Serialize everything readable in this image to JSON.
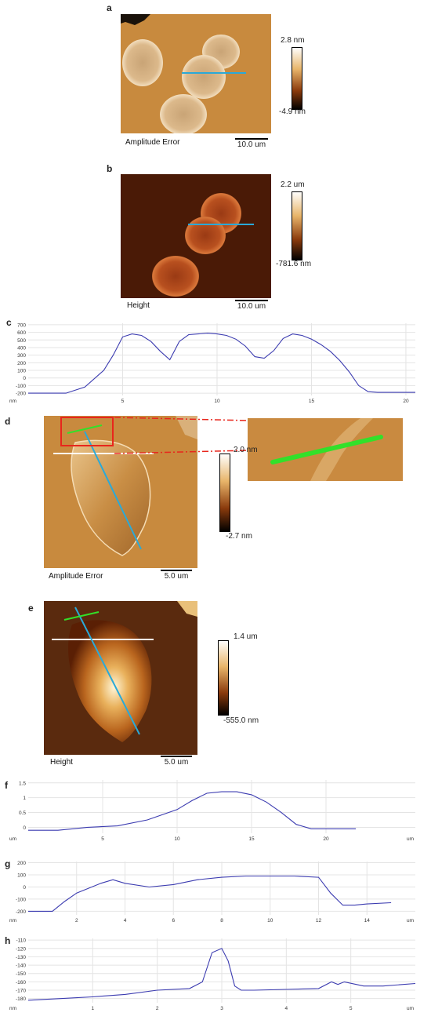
{
  "panels": {
    "a": {
      "letter": "a",
      "caption": "Amplitude Error",
      "scale": "10.0 um",
      "cmax": "2.8 nm",
      "cmin": "-4.9 nm"
    },
    "b": {
      "letter": "b",
      "caption": "Height",
      "scale": "10.0 um",
      "cmax": "2.2 um",
      "cmin": "-781.6 nm"
    },
    "d": {
      "letter": "d",
      "caption": "Amplitude Error",
      "scale": "5.0 um",
      "cmax": "2.0 nm",
      "cmin": "-2.7 nm"
    },
    "e": {
      "letter": "e",
      "caption": "Height",
      "scale": "5.0 um",
      "cmax": "1.4 um",
      "cmin": "-555.0 nm"
    }
  },
  "colors": {
    "blue_line": "#2aa9d8",
    "green_line": "#33e02a",
    "white_line": "#ffffff",
    "inset_box": "#e8261c",
    "profile": "#3b3bb0"
  },
  "chart_data": [
    {
      "type": "line",
      "panel": "c",
      "ylabel": "nm",
      "xlabel": "",
      "xticks": [
        5,
        10,
        15,
        20
      ],
      "yticks": [
        700,
        600,
        500,
        400,
        300,
        200,
        100,
        0,
        -100,
        -200
      ],
      "xlim": [
        0,
        20.5
      ],
      "ylim": [
        -230,
        720
      ],
      "x": [
        0,
        2,
        3,
        4,
        4.5,
        5,
        5.5,
        6,
        6.5,
        7,
        7.5,
        8,
        8.5,
        9,
        9.5,
        10,
        10.5,
        11,
        11.5,
        12,
        12.5,
        13,
        13.5,
        14,
        14.5,
        15,
        15.5,
        16,
        16.5,
        17,
        17.5,
        18,
        18.5,
        19,
        19.5,
        20,
        20.5
      ],
      "y": [
        -200,
        -200,
        -120,
        100,
        300,
        540,
        580,
        560,
        480,
        350,
        240,
        480,
        570,
        580,
        590,
        580,
        560,
        510,
        420,
        280,
        260,
        360,
        520,
        580,
        560,
        510,
        440,
        350,
        230,
        80,
        -100,
        -180,
        -190,
        -190,
        -190,
        -190,
        -190
      ]
    },
    {
      "type": "line",
      "panel": "f",
      "ylabel": "um",
      "xlabel": "um",
      "xticks": [
        5,
        10,
        15,
        20
      ],
      "yticks": [
        1.5,
        1,
        0.5,
        0
      ],
      "xlim": [
        0,
        26
      ],
      "ylim": [
        -0.2,
        1.6
      ],
      "x": [
        0,
        2,
        4,
        6,
        8,
        10,
        11,
        12,
        13,
        14,
        15,
        16,
        17,
        18,
        19,
        20,
        22
      ],
      "y": [
        -0.1,
        -0.1,
        0,
        0.05,
        0.25,
        0.6,
        0.9,
        1.15,
        1.2,
        1.2,
        1.1,
        0.85,
        0.5,
        0.1,
        -0.05,
        -0.05,
        -0.05
      ]
    },
    {
      "type": "line",
      "panel": "g",
      "ylabel": "nm",
      "xlabel": "um",
      "xticks": [
        2,
        4,
        6,
        8,
        10,
        12,
        14
      ],
      "yticks": [
        200,
        100,
        0,
        -100,
        -200
      ],
      "xlim": [
        0,
        16
      ],
      "ylim": [
        -230,
        210
      ],
      "x": [
        0,
        1,
        1.5,
        2,
        3,
        3.5,
        4,
        5,
        6,
        7,
        8,
        9,
        10,
        11,
        12,
        12.5,
        13,
        13.5,
        14,
        15
      ],
      "y": [
        -200,
        -200,
        -120,
        -50,
        30,
        60,
        30,
        0,
        20,
        60,
        80,
        90,
        90,
        90,
        80,
        -50,
        -150,
        -150,
        -140,
        -130
      ]
    },
    {
      "type": "line",
      "panel": "h",
      "ylabel": "nm",
      "xlabel": "um",
      "xticks": [
        1,
        2,
        3,
        4,
        5
      ],
      "yticks": [
        -110,
        -120,
        -130,
        -140,
        -150,
        -160,
        -170,
        -180
      ],
      "xlim": [
        0,
        6
      ],
      "ylim": [
        -185,
        -108
      ],
      "x": [
        0,
        0.5,
        1,
        1.5,
        2,
        2.5,
        2.7,
        2.85,
        3,
        3.1,
        3.2,
        3.3,
        3.5,
        4,
        4.5,
        4.7,
        4.8,
        4.9,
        5.2,
        5.5,
        6
      ],
      "y": [
        -182,
        -180,
        -178,
        -175,
        -170,
        -168,
        -160,
        -125,
        -120,
        -135,
        -165,
        -170,
        -170,
        -169,
        -168,
        -160,
        -163,
        -160,
        -165,
        -165,
        -162
      ]
    }
  ]
}
